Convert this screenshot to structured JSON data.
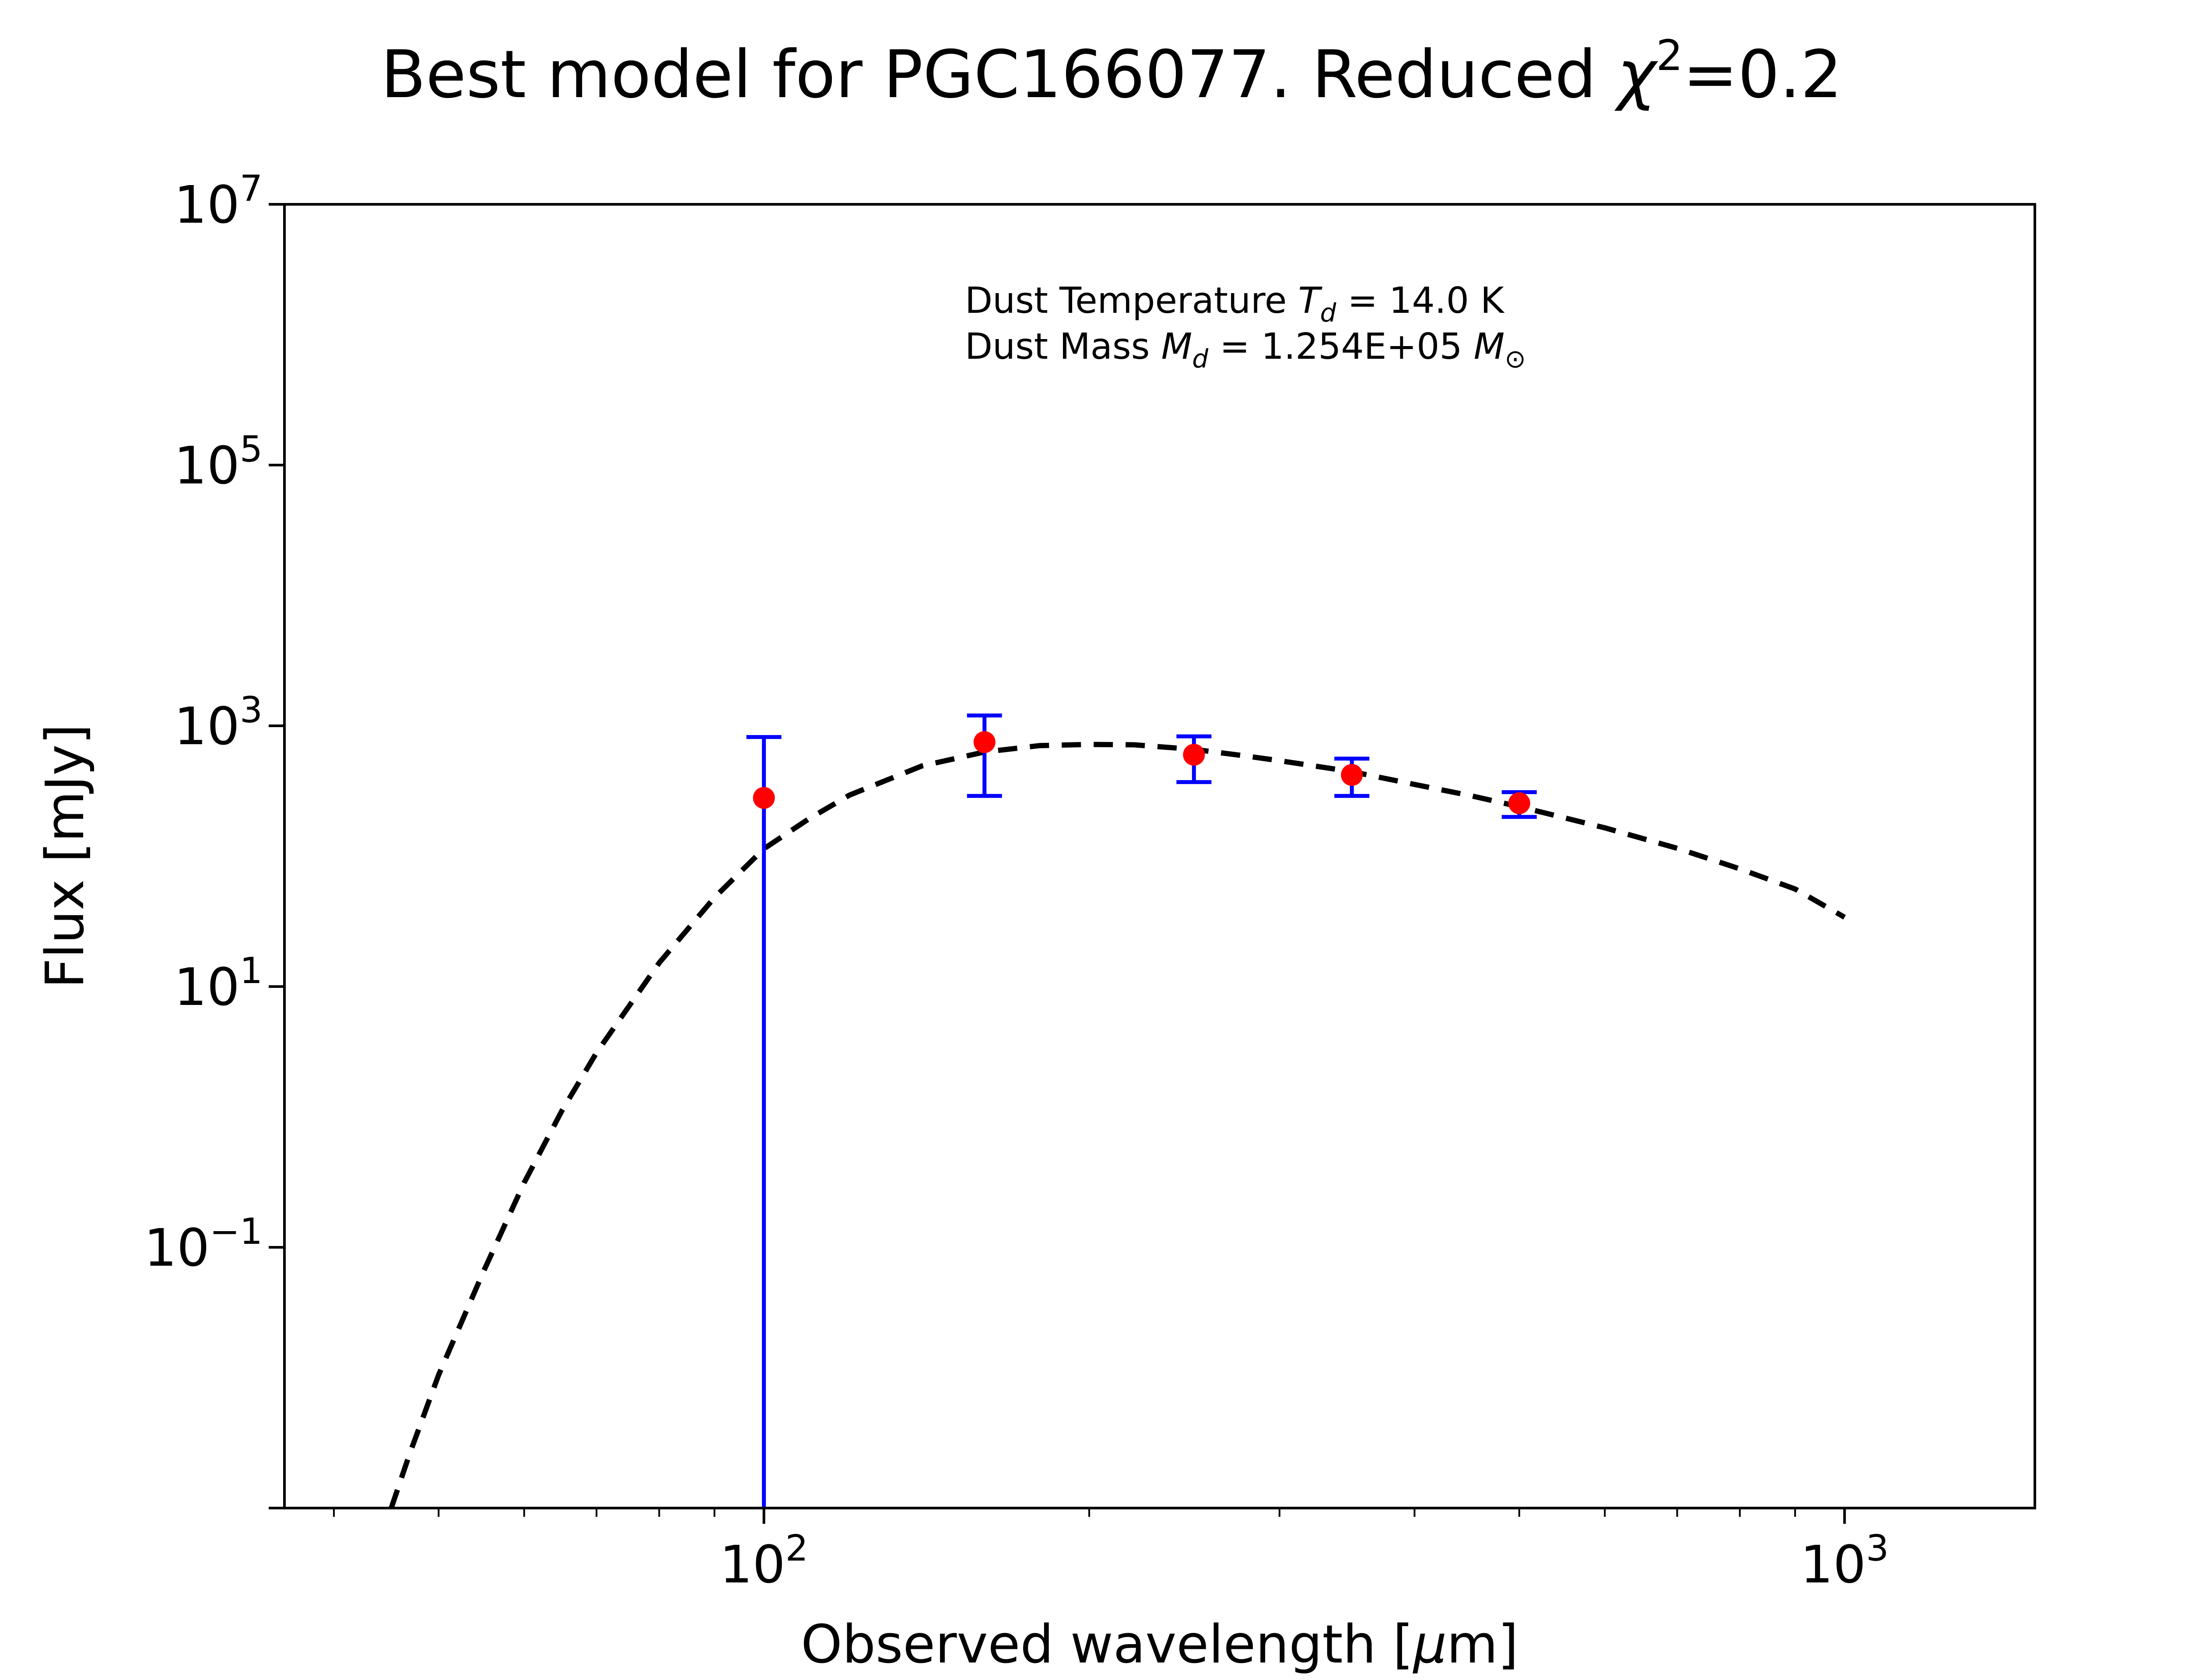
{
  "chart_data": {
    "type": "scatter",
    "title": "Best model for PGC166077. Reduced",
    "title_suffix": "=0.2",
    "title_symbol": "χ",
    "title_sup": "2",
    "xlabel_prefix": "Observed wavelength [",
    "xlabel_symbol": "μ",
    "xlabel_suffix": "m]",
    "ylabel": "Flux [mJy]",
    "x_scale": "log",
    "y_scale": "log",
    "xlim": [
      36,
      1500
    ],
    "ylim": [
      0.001,
      10000000
    ],
    "grid": false,
    "x_ticks": [
      {
        "value": 100,
        "base": "10",
        "exp": "2"
      },
      {
        "value": 1000,
        "base": "10",
        "exp": "3"
      }
    ],
    "y_ticks": [
      {
        "value": 0.1,
        "base": "10",
        "exp": "−1"
      },
      {
        "value": 10,
        "base": "10",
        "exp": "1"
      },
      {
        "value": 1000,
        "base": "10",
        "exp": "3"
      },
      {
        "value": 100000,
        "base": "10",
        "exp": "5"
      },
      {
        "value": 10000000,
        "base": "10",
        "exp": "7"
      }
    ],
    "annotations": {
      "line1_prefix": "Dust Temperature ",
      "line1_symbol": "T",
      "line1_sub": "d",
      "line1_value": " = 14.0 K",
      "line2_prefix": "Dust Mass ",
      "line2_symbol": "M",
      "line2_sub": "d",
      "line2_value": " = 1.254E+05 ",
      "line2_unit_symbol": "M",
      "line2_unit_sub": "⊙"
    },
    "colors": {
      "points": "#ff0000",
      "errorbars": "#0000ff",
      "model": "#000000"
    },
    "observed": [
      {
        "x": 100,
        "y": 280,
        "y_low": 0.001,
        "y_high": 820
      },
      {
        "x": 160,
        "y": 750,
        "y_low": 290,
        "y_high": 1200
      },
      {
        "x": 250,
        "y": 600,
        "y_low": 370,
        "y_high": 830
      },
      {
        "x": 350,
        "y": 420,
        "y_low": 290,
        "y_high": 560
      },
      {
        "x": 500,
        "y": 255,
        "y_low": 200,
        "y_high": 310
      }
    ],
    "model": {
      "style": "dashed",
      "x": [
        45.2,
        47,
        50,
        55,
        60,
        65,
        70,
        80,
        90,
        100,
        110,
        120,
        140,
        160,
        180,
        200,
        220,
        250,
        280,
        300,
        350,
        400,
        450,
        500,
        600,
        700,
        800,
        900,
        1000
      ],
      "y": [
        0.001,
        0.0026,
        0.0105,
        0.0648,
        0.313,
        1.11,
        3.11,
        15.2,
        48.2,
        114,
        193,
        294,
        492,
        630,
        705,
        720,
        715,
        660,
        585,
        540,
        445,
        355,
        292,
        240,
        165,
        115,
        80,
        56,
        34
      ]
    }
  }
}
